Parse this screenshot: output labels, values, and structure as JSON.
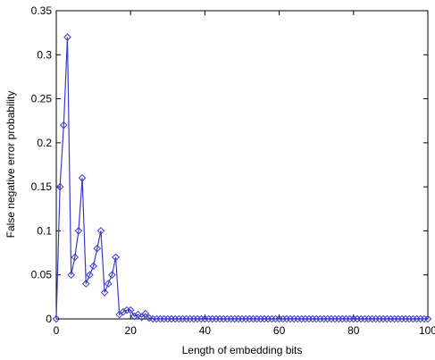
{
  "chart_data": {
    "type": "line",
    "title": "",
    "xlabel": "Length of embedding bits",
    "ylabel": "False negative error probability",
    "xlim": [
      0,
      100
    ],
    "ylim": [
      0,
      0.35
    ],
    "xticks": [
      0,
      20,
      40,
      60,
      80,
      100
    ],
    "xtick_labels": [
      "0",
      "20",
      "40",
      "60",
      "80",
      "100"
    ],
    "yticks": [
      0,
      0.05,
      0.1,
      0.15,
      0.2,
      0.25,
      0.3,
      0.35
    ],
    "ytick_labels": [
      "0",
      "0.05",
      "0.1",
      "0.15",
      "0.2",
      "0.25",
      "0.3",
      "0.35"
    ],
    "grid": false,
    "legend": "none",
    "marker": "diamond",
    "line_color": "#3a3ad0",
    "series": [
      {
        "x": [
          0,
          1,
          2,
          3,
          4,
          5,
          6,
          7,
          8,
          9,
          10,
          11,
          12,
          13,
          14,
          15,
          16,
          17,
          18,
          19,
          20,
          21,
          22,
          23,
          24,
          25,
          26,
          27,
          28,
          29,
          30,
          31,
          32,
          33,
          34,
          35,
          36,
          37,
          38,
          39,
          40,
          41,
          42,
          43,
          44,
          45,
          46,
          47,
          48,
          49,
          50,
          51,
          52,
          53,
          54,
          55,
          56,
          57,
          58,
          59,
          60,
          61,
          62,
          63,
          64,
          65,
          66,
          67,
          68,
          69,
          70,
          71,
          72,
          73,
          74,
          75,
          76,
          77,
          78,
          79,
          80,
          81,
          82,
          83,
          84,
          85,
          86,
          87,
          88,
          89,
          90,
          91,
          92,
          93,
          94,
          95,
          96,
          97,
          98,
          99,
          100
        ],
        "y": [
          0,
          0.15,
          0.22,
          0.32,
          0.05,
          0.07,
          0.1,
          0.16,
          0.04,
          0.05,
          0.06,
          0.08,
          0.1,
          0.03,
          0.04,
          0.05,
          0.07,
          0.005,
          0.008,
          0.01,
          0.01,
          0.003,
          0.005,
          0.002,
          0.006,
          0.001,
          0,
          0,
          0,
          0,
          0,
          0,
          0,
          0,
          0,
          0,
          0,
          0,
          0,
          0,
          0,
          0,
          0,
          0,
          0,
          0,
          0,
          0,
          0,
          0,
          0,
          0,
          0,
          0,
          0,
          0,
          0,
          0,
          0,
          0,
          0,
          0,
          0,
          0,
          0,
          0,
          0,
          0,
          0,
          0,
          0,
          0,
          0,
          0,
          0,
          0,
          0,
          0,
          0,
          0,
          0,
          0,
          0,
          0,
          0,
          0,
          0,
          0,
          0,
          0,
          0,
          0,
          0,
          0,
          0,
          0,
          0,
          0,
          0,
          0,
          0
        ]
      }
    ]
  }
}
